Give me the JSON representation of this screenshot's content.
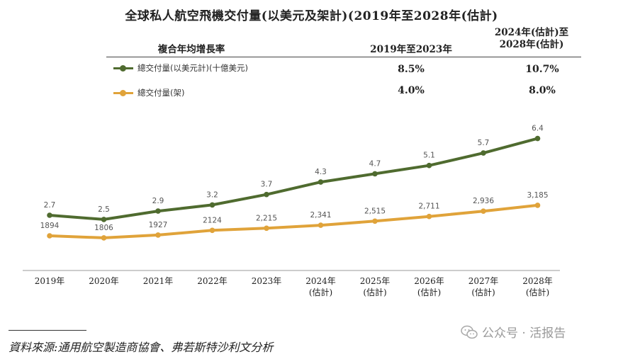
{
  "title": "全球私人航空飛機交付量(以美元及架計)(2019年至2028年(估計)",
  "table": {
    "cagr_header": "複合年均增長率",
    "period1_header": "2019年至2023年",
    "period2_header_line1": "2024年(估計)至",
    "period2_header_line2": "2028年(估計)",
    "rows": [
      {
        "legend": "總交付量(以美元計)(十億美元)",
        "period1": "8.5%",
        "period2": "10.7%",
        "color": "#4f6b2f"
      },
      {
        "legend": "總交付量(架)",
        "period1": "4.0%",
        "period2": "8.0%",
        "color": "#e0a33a"
      }
    ]
  },
  "chart_data": {
    "type": "line",
    "categories": [
      "2019年",
      "2020年",
      "2021年",
      "2022年",
      "2023年",
      "2024年\n(估計)",
      "2025年\n(估計)",
      "2026年\n(估計)",
      "2027年\n(估計)",
      "2028年\n(估計)"
    ],
    "series": [
      {
        "name": "總交付量(以美元計)(十億美元)",
        "values": [
          2.7,
          2.5,
          2.9,
          3.2,
          3.7,
          4.3,
          4.7,
          5.1,
          5.7,
          6.4
        ],
        "labels": [
          "2.7",
          "2.5",
          "2.9",
          "3.2",
          "3.7",
          "4.3",
          "4.7",
          "5.1",
          "5.7",
          "6.4"
        ],
        "color": "#4f6b2f"
      },
      {
        "name": "總交付量(架)",
        "values": [
          1894,
          1806,
          1927,
          2124,
          2215,
          2341,
          2515,
          2711,
          2936,
          3185
        ],
        "labels": [
          "1894",
          "1806",
          "1927",
          "2124",
          "2,215",
          "2,341",
          "2,515",
          "2,711",
          "2,936",
          "3,185"
        ],
        "color": "#e0a33a"
      }
    ]
  },
  "source": "資料來源:通用航空製造商協會、弗若斯特沙利文分析",
  "watermark": {
    "text": "公众号 · 活报告",
    "icon": "wechat-icon"
  }
}
